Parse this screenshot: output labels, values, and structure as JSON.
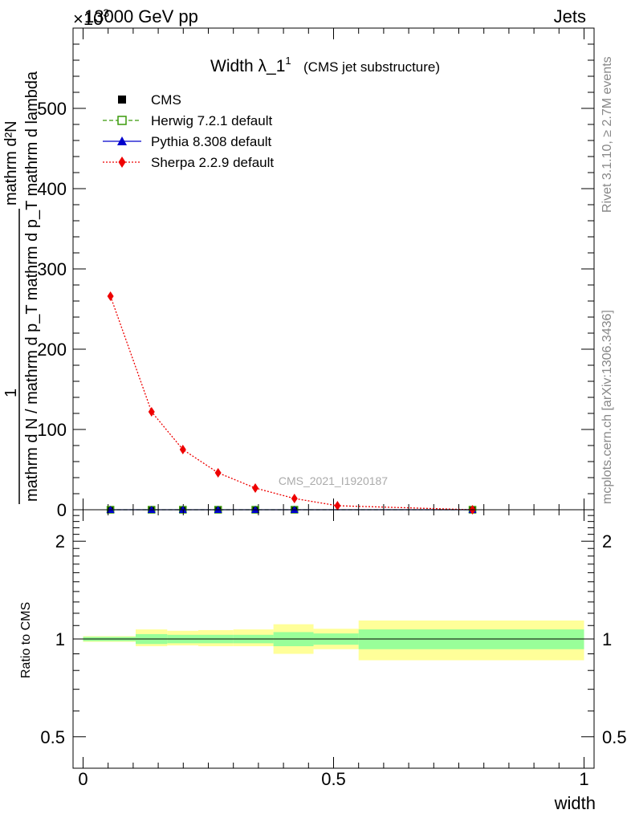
{
  "header": {
    "energy_label": "13000 GeV pp",
    "process_label": "Jets",
    "exponent_label": "×10",
    "exponent_power": "3"
  },
  "side_labels": {
    "rivet": "Rivet 3.1.10, ≥ 2.7M events",
    "mcplots": "mcplots.cern.ch [arXiv:1306.3436]"
  },
  "watermark": "CMS_2021_I1920187",
  "chart_data": [
    {
      "type": "scatter",
      "title": "Width λ_1",
      "title_sup": "1",
      "subtitle": "(CMS jet substructure)",
      "ylabel_lines": [
        "mathrm d N / mathrm d p_T mathrm d p_T mathrm d lambda",
        "mathrm d²N",
        "1"
      ],
      "ylim": [
        0,
        600
      ],
      "xlim": [
        -0.02,
        1.02
      ],
      "yticks": [
        0,
        100,
        200,
        300,
        400,
        500
      ],
      "legend_position": "top-left",
      "series": [
        {
          "name": "CMS",
          "color": "#000000",
          "marker": "square-filled",
          "x": [
            0.0547,
            0.1367,
            0.1992,
            0.2695,
            0.3438,
            0.4219,
            0.7773
          ],
          "y": [
            0,
            0,
            0,
            0,
            0,
            0,
            0
          ]
        },
        {
          "name": "Herwig 7.2.1 default",
          "color": "#3a9a0a",
          "marker": "square-open",
          "line": "dashed",
          "x": [
            0.0547,
            0.1367,
            0.1992,
            0.2695,
            0.3438,
            0.4219,
            0.7773
          ],
          "y": [
            0,
            0,
            0,
            0,
            0,
            0,
            0
          ]
        },
        {
          "name": "Pythia 8.308 default",
          "color": "#0000cc",
          "marker": "triangle",
          "line": "solid",
          "x": [
            0.0547,
            0.1367,
            0.1992,
            0.2695,
            0.3438,
            0.4219,
            0.7773
          ],
          "y": [
            0,
            0,
            0,
            0,
            0,
            0,
            0
          ]
        },
        {
          "name": "Sherpa 2.2.9 default",
          "color": "#ee0000",
          "marker": "diamond",
          "line": "dotted",
          "x": [
            0.0547,
            0.1367,
            0.1992,
            0.2695,
            0.3438,
            0.4219,
            0.5078,
            0.7773
          ],
          "y": [
            266,
            122,
            75,
            46,
            27,
            14,
            5,
            0
          ]
        }
      ]
    },
    {
      "type": "area",
      "ylabel": "Ratio to CMS",
      "xlabel": "width",
      "xlim": [
        -0.02,
        1.02
      ],
      "ylim_log": [
        0.4,
        2.5
      ],
      "yticks": [
        0.5,
        1,
        2
      ],
      "ytick_labels": [
        "0.5",
        "1",
        "2"
      ],
      "xticks": [
        0,
        0.5,
        1
      ],
      "xtick_labels": [
        "0",
        "0.5",
        "1"
      ],
      "reference_line": 1,
      "colors": {
        "inner_band": "#99ff99",
        "outer_band": "#ffff99"
      },
      "bins": [
        {
          "x": [
            0.0,
            0.105
          ],
          "inner": [
            0.985,
            1.015
          ],
          "outer": [
            0.98,
            1.02
          ]
        },
        {
          "x": [
            0.105,
            0.168
          ],
          "inner": [
            0.965,
            1.035
          ],
          "outer": [
            0.95,
            1.07
          ]
        },
        {
          "x": [
            0.168,
            0.23
          ],
          "inner": [
            0.97,
            1.03
          ],
          "outer": [
            0.955,
            1.06
          ]
        },
        {
          "x": [
            0.23,
            0.3
          ],
          "inner": [
            0.97,
            1.03
          ],
          "outer": [
            0.95,
            1.065
          ]
        },
        {
          "x": [
            0.3,
            0.38
          ],
          "inner": [
            0.97,
            1.03
          ],
          "outer": [
            0.95,
            1.07
          ]
        },
        {
          "x": [
            0.38,
            0.46
          ],
          "inner": [
            0.95,
            1.05
          ],
          "outer": [
            0.9,
            1.11
          ]
        },
        {
          "x": [
            0.46,
            0.55
          ],
          "inner": [
            0.96,
            1.04
          ],
          "outer": [
            0.93,
            1.075
          ]
        },
        {
          "x": [
            0.55,
            1.0
          ],
          "inner": [
            0.93,
            1.07
          ],
          "outer": [
            0.86,
            1.14
          ]
        }
      ]
    }
  ]
}
